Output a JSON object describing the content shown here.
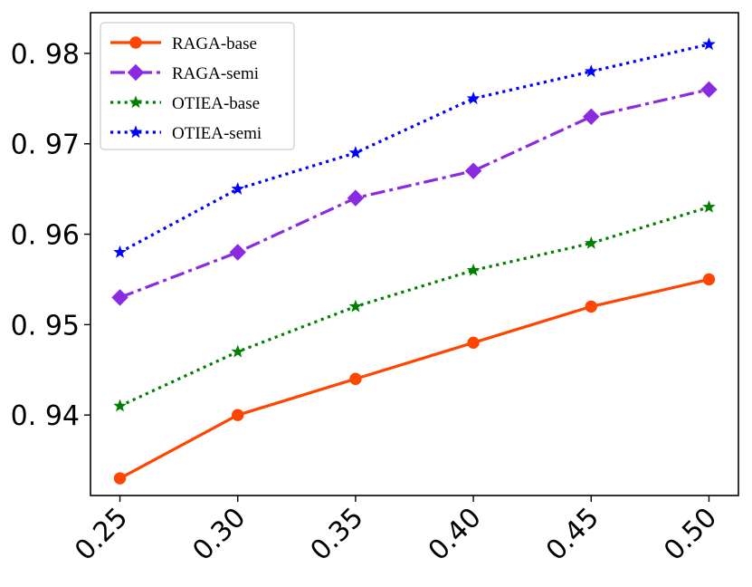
{
  "chart_data": {
    "type": "line",
    "title": "",
    "xlabel": "",
    "ylabel": "",
    "x": [
      0.25,
      0.3,
      0.35,
      0.4,
      0.45,
      0.5
    ],
    "xtick_labels": [
      "0.25",
      "0.30",
      "0.35",
      "0.40",
      "0.45",
      "0.50"
    ],
    "yticks": [
      0.94,
      0.95,
      0.96,
      0.97,
      0.98
    ],
    "ytick_labels": [
      "0. 94",
      "0. 95",
      "0. 96",
      "0. 97",
      "0. 98"
    ],
    "ylim": [
      0.9311,
      0.9845
    ],
    "xlim": [
      0.2375,
      0.5125
    ],
    "grid": false,
    "legend_position": "top-left",
    "series": [
      {
        "name": "RAGA-base",
        "color": "#ff4500",
        "dash": "solid",
        "marker": "circle",
        "values": [
          0.933,
          0.94,
          0.944,
          0.948,
          0.952,
          0.955
        ]
      },
      {
        "name": "RAGA-semi",
        "color": "#8a2be2",
        "dash": "dashdot",
        "marker": "diamond",
        "values": [
          0.953,
          0.958,
          0.964,
          0.967,
          0.973,
          0.976
        ]
      },
      {
        "name": "OTIEA-base",
        "color": "#008000",
        "dash": "dotted",
        "marker": "star",
        "values": [
          0.941,
          0.947,
          0.952,
          0.956,
          0.959,
          0.963
        ]
      },
      {
        "name": "OTIEA-semi",
        "color": "#0000ff",
        "dash": "dotted",
        "marker": "star",
        "values": [
          0.958,
          0.965,
          0.969,
          0.975,
          0.978,
          0.981
        ]
      }
    ]
  }
}
